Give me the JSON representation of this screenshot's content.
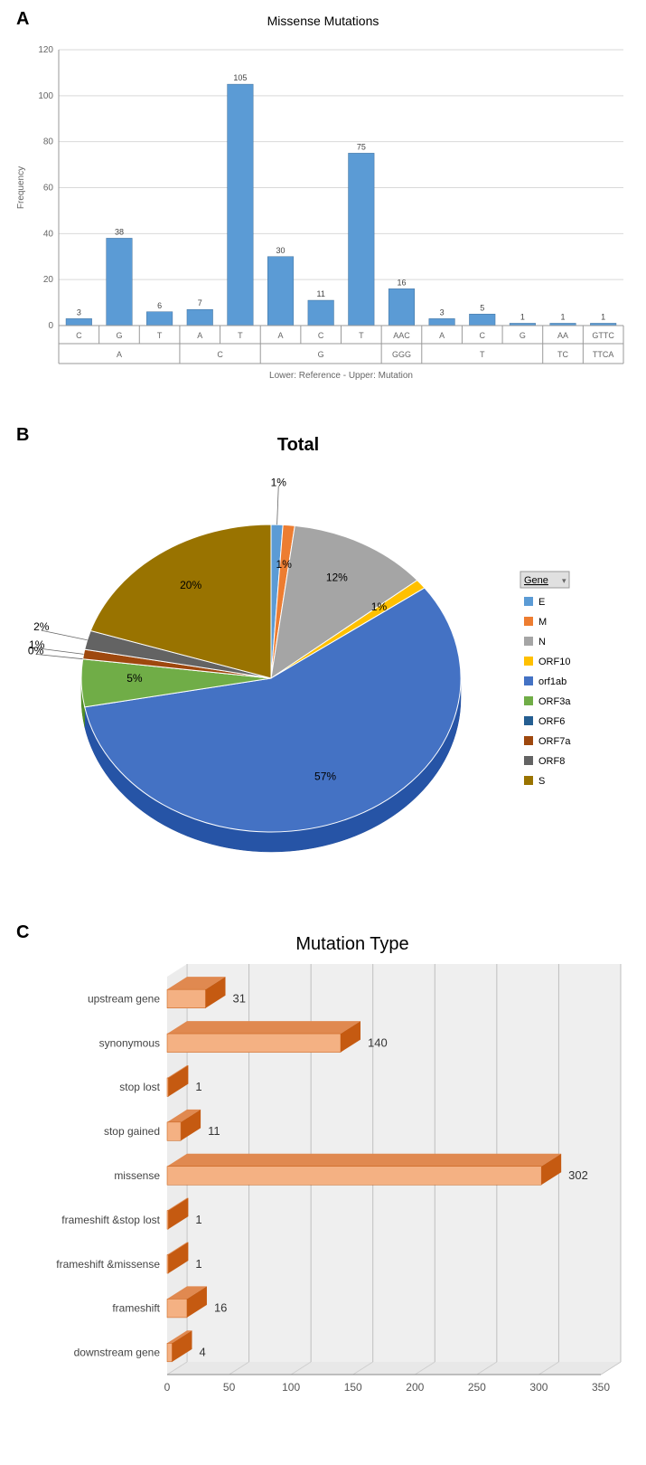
{
  "panelA": {
    "label": "A",
    "title": "Missense Mutations",
    "type": "bar",
    "ylabel": "Frequency",
    "xlabel": "Lower: Reference - Upper: Mutation",
    "ylim": [
      0,
      120
    ],
    "ytick_step": 20,
    "bar_color": "#5b9bd5",
    "bar_border": "#41719c",
    "grid_color": "#d9d9d9",
    "axis_color": "#999999",
    "label_fontsize": 10,
    "title_fontsize": 14,
    "groups": [
      {
        "ref": "A",
        "muts": [
          {
            "m": "C",
            "v": 3
          },
          {
            "m": "G",
            "v": 38
          },
          {
            "m": "T",
            "v": 6
          }
        ]
      },
      {
        "ref": "C",
        "muts": [
          {
            "m": "A",
            "v": 7
          },
          {
            "m": "T",
            "v": 105
          }
        ]
      },
      {
        "ref": "G",
        "muts": [
          {
            "m": "A",
            "v": 30
          },
          {
            "m": "C",
            "v": 11
          },
          {
            "m": "T",
            "v": 75
          }
        ]
      },
      {
        "ref": "GGG",
        "muts": [
          {
            "m": "AAC",
            "v": 16
          }
        ]
      },
      {
        "ref": "T",
        "muts": [
          {
            "m": "A",
            "v": 3
          },
          {
            "m": "C",
            "v": 5
          },
          {
            "m": "G",
            "v": 1
          }
        ]
      },
      {
        "ref": "TC",
        "muts": [
          {
            "m": "AA",
            "v": 1
          }
        ]
      },
      {
        "ref": "TTCA",
        "muts": [
          {
            "m": "GTTC",
            "v": 1
          }
        ]
      }
    ]
  },
  "panelB": {
    "label": "B",
    "title": "Total",
    "type": "pie-3d",
    "legend_title": "Gene",
    "legend_bg": "#e0e0e0",
    "slices": [
      {
        "label": "E",
        "pct": 1,
        "color": "#5b9bd5",
        "showLabel": true,
        "leader": true
      },
      {
        "label": "M",
        "pct": 1,
        "color": "#ed7d31",
        "showLabel": true
      },
      {
        "label": "N",
        "pct": 12,
        "color": "#a5a5a5",
        "showLabel": true
      },
      {
        "label": "ORF10",
        "pct": 1,
        "color": "#ffc000",
        "showLabel": true
      },
      {
        "label": "orf1ab",
        "pct": 57,
        "color": "#4472c4",
        "showLabel": true
      },
      {
        "label": "ORF3a",
        "pct": 5,
        "color": "#70ad47",
        "showLabel": true
      },
      {
        "label": "ORF6",
        "pct": 0,
        "color": "#255e91",
        "showLabel": true,
        "leader": true
      },
      {
        "label": "ORF7a",
        "pct": 1,
        "color": "#9e480e",
        "showLabel": true,
        "leader": true
      },
      {
        "label": "ORF8",
        "pct": 2,
        "color": "#636363",
        "showLabel": true,
        "leader": true
      },
      {
        "label": "S",
        "pct": 20,
        "color": "#997300",
        "showLabel": true
      }
    ]
  },
  "panelC": {
    "label": "C",
    "title": "Mutation Type",
    "type": "horizontal-bar-3d",
    "xlim": [
      0,
      350
    ],
    "xtick_step": 50,
    "bar_face_color": "#f4b183",
    "bar_side_color": "#c55a11",
    "bar_top_color": "#e08950",
    "floor_color": "#d9d9d9",
    "wall_color": "#efefef",
    "grid_color": "#bfbfbf",
    "label_fontsize": 12,
    "title_fontsize": 20,
    "bars": [
      {
        "cat": "upstream gene",
        "v": 31
      },
      {
        "cat": "synonymous",
        "v": 140
      },
      {
        "cat": "stop lost",
        "v": 1
      },
      {
        "cat": "stop gained",
        "v": 11
      },
      {
        "cat": "missense",
        "v": 302
      },
      {
        "cat": "frameshift &stop lost",
        "v": 1
      },
      {
        "cat": "frameshift &missense",
        "v": 1
      },
      {
        "cat": "frameshift",
        "v": 16
      },
      {
        "cat": "downstream gene",
        "v": 4
      }
    ]
  }
}
